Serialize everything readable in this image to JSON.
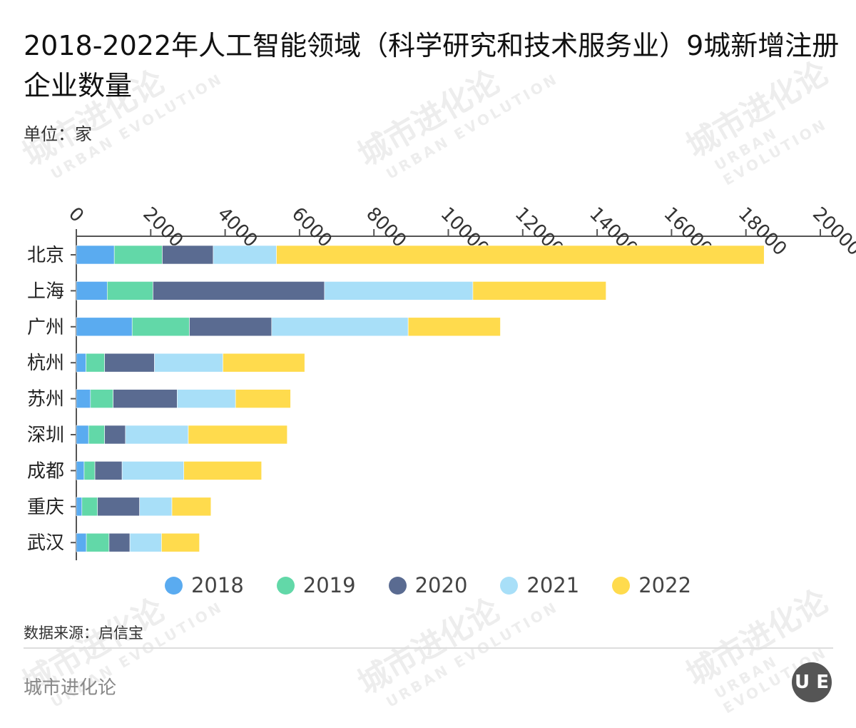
{
  "title": "2018-2022年人工智能领域（科学研究和技术服务业）9城新增注册企业数量",
  "unit": "单位：家",
  "source": "数据来源：启信宝",
  "footer": "城市进化论",
  "watermark": {
    "cn": "城市进化论",
    "en": "URBAN EVOLUTION"
  },
  "logo": "UE",
  "chart_data": {
    "type": "bar",
    "orientation": "horizontal",
    "stacked": true,
    "categories": [
      "北京",
      "上海",
      "广州",
      "杭州",
      "苏州",
      "深圳",
      "成都",
      "重庆",
      "武汉"
    ],
    "xlim": [
      0,
      20000
    ],
    "ticks": [
      "0",
      "2000",
      "4000",
      "6000",
      "8000",
      "10000",
      "12000",
      "14000",
      "16000",
      "18000",
      "20000"
    ],
    "tick_values": [
      0,
      2000,
      4000,
      6000,
      8000,
      10000,
      12000,
      14000,
      16000,
      18000,
      20000
    ],
    "grid": false,
    "legend_position": "bottom",
    "series": [
      {
        "name": "2018",
        "color": "#5aabf0",
        "values": [
          1020,
          830,
          1500,
          260,
          380,
          330,
          210,
          150,
          270
        ]
      },
      {
        "name": "2019",
        "color": "#62d8a8",
        "values": [
          1290,
          1230,
          1540,
          500,
          610,
          430,
          290,
          420,
          610
        ]
      },
      {
        "name": "2020",
        "color": "#5a6b91",
        "values": [
          1370,
          4610,
          2210,
          1340,
          1720,
          560,
          730,
          1130,
          560
        ]
      },
      {
        "name": "2021",
        "color": "#a8dff8",
        "values": [
          1700,
          3990,
          3670,
          1840,
          1570,
          1690,
          1660,
          870,
          850
        ]
      },
      {
        "name": "2022",
        "color": "#ffdb4d",
        "values": [
          13110,
          3580,
          2480,
          2200,
          1480,
          2660,
          2090,
          1050,
          1020
        ]
      }
    ]
  }
}
